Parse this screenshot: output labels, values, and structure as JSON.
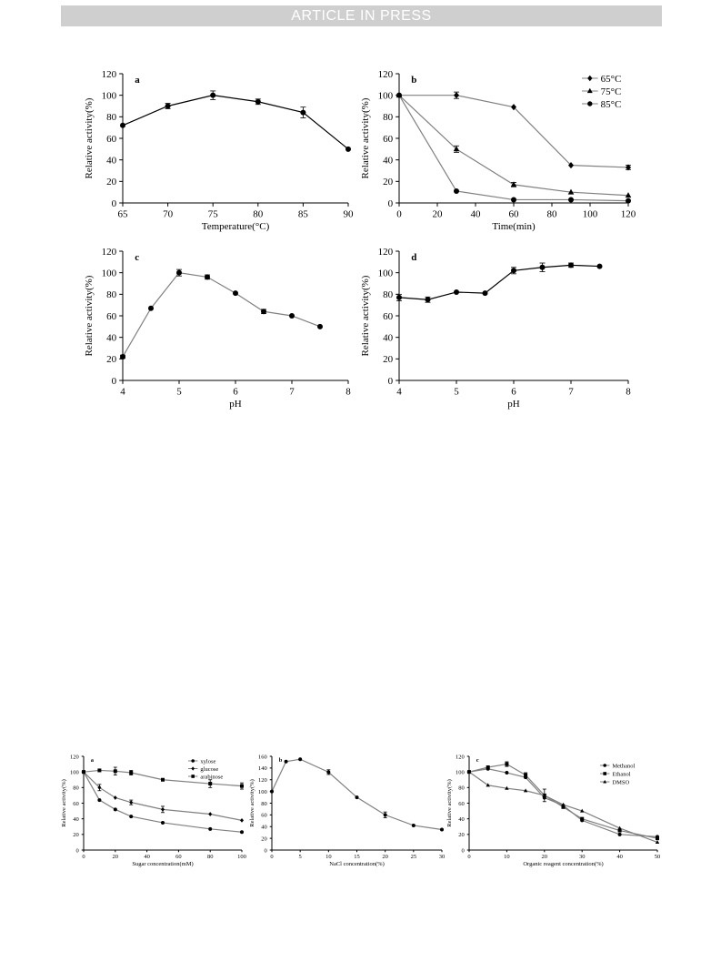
{
  "banner": {
    "text": "ARTICLE IN PRESS"
  },
  "chart_data": [
    {
      "type": "line",
      "panel": "a",
      "xlabel": "Temperature(°C)",
      "ylabel": "Relative activity(%)",
      "xlim": [
        65,
        90
      ],
      "ylim": [
        0,
        120
      ],
      "xticks": [
        65,
        70,
        75,
        80,
        85,
        90
      ],
      "yticks": [
        0,
        20,
        40,
        60,
        80,
        100,
        120
      ],
      "series": [
        {
          "marker": "circle",
          "x": [
            65,
            70,
            75,
            80,
            85,
            90
          ],
          "y": [
            72,
            90,
            100,
            94,
            84,
            50
          ],
          "err": [
            0,
            2.5,
            4,
            2.5,
            5,
            0
          ]
        }
      ]
    },
    {
      "type": "line",
      "panel": "b",
      "xlabel": "Time(min)",
      "ylabel": "Relative activity(%)",
      "xlim": [
        0,
        120
      ],
      "ylim": [
        0,
        120
      ],
      "xticks": [
        0,
        20,
        40,
        60,
        80,
        100,
        120
      ],
      "yticks": [
        0,
        20,
        40,
        60,
        80,
        100,
        120
      ],
      "legend_position": "top-right",
      "series": [
        {
          "name": "65°C",
          "marker": "diamond",
          "x": [
            0,
            30,
            60,
            90,
            120
          ],
          "y": [
            100,
            100,
            89,
            35,
            33
          ],
          "err": [
            0,
            3,
            0,
            0,
            2
          ]
        },
        {
          "name": "75°C",
          "marker": "triangle",
          "x": [
            0,
            30,
            60,
            90,
            120
          ],
          "y": [
            100,
            50,
            17,
            10,
            7
          ],
          "err": [
            0,
            3,
            2,
            0,
            0
          ]
        },
        {
          "name": "85°C",
          "marker": "circle",
          "x": [
            0,
            30,
            60,
            90,
            120
          ],
          "y": [
            100,
            11,
            3,
            3,
            2
          ],
          "err": [
            0,
            0,
            0,
            0,
            0
          ]
        }
      ]
    },
    {
      "type": "line",
      "panel": "c",
      "xlabel": "pH",
      "ylabel": "Relative activity(%)",
      "xlim": [
        4,
        8
      ],
      "ylim": [
        0,
        120
      ],
      "xticks": [
        4,
        5,
        6,
        7,
        8
      ],
      "yticks": [
        0,
        20,
        40,
        60,
        80,
        100,
        120
      ],
      "series": [
        {
          "marker": "circle",
          "x": [
            4,
            4.5,
            5,
            5.5,
            6,
            6.5,
            7,
            7.5
          ],
          "y": [
            22,
            67,
            100,
            96,
            81,
            64,
            60,
            50
          ],
          "err": [
            1.5,
            0,
            3,
            2,
            0,
            2,
            0,
            0
          ]
        }
      ]
    },
    {
      "type": "line",
      "panel": "d",
      "xlabel": "pH",
      "ylabel": "Relative activity(%)",
      "xlim": [
        4,
        8
      ],
      "ylim": [
        0,
        120
      ],
      "xticks": [
        4,
        5,
        6,
        7,
        8
      ],
      "yticks": [
        0,
        20,
        40,
        60,
        80,
        100,
        120
      ],
      "series": [
        {
          "marker": "circle",
          "x": [
            4,
            4.5,
            5,
            5.5,
            6,
            6.5,
            7,
            7.5
          ],
          "y": [
            77,
            75,
            82,
            81,
            102,
            105,
            107,
            106
          ],
          "err": [
            3,
            2.5,
            0,
            0,
            3,
            4,
            2,
            0
          ]
        }
      ]
    },
    {
      "type": "line",
      "panel": "a",
      "xlabel": "Sugar concentration(mM)",
      "ylabel": "Relative activity(%)",
      "xlim": [
        0,
        100
      ],
      "ylim": [
        0,
        120
      ],
      "xticks": [
        0,
        20,
        40,
        60,
        80,
        100
      ],
      "yticks": [
        0,
        20,
        40,
        60,
        80,
        100,
        120
      ],
      "legend_position": "top-right",
      "series": [
        {
          "name": "xylose",
          "marker": "circle",
          "x": [
            0,
            10,
            20,
            30,
            50,
            80,
            100
          ],
          "y": [
            100,
            64,
            52,
            43,
            35,
            27,
            23
          ],
          "err": [
            0,
            0,
            0,
            0,
            0,
            0,
            0
          ]
        },
        {
          "name": "glucose",
          "marker": "diamond",
          "x": [
            0,
            10,
            20,
            30,
            50,
            80,
            100
          ],
          "y": [
            100,
            80,
            67,
            61,
            52,
            46,
            38
          ],
          "err": [
            0,
            4,
            0,
            3,
            4,
            0,
            0
          ]
        },
        {
          "name": "arabinose",
          "marker": "square",
          "x": [
            0,
            10,
            20,
            30,
            50,
            80,
            100
          ],
          "y": [
            100,
            102,
            101,
            99,
            90,
            85,
            82
          ],
          "err": [
            0,
            0,
            5,
            3,
            0,
            5,
            4
          ]
        }
      ]
    },
    {
      "type": "line",
      "panel": "b",
      "xlabel": "NaCl concentration(%)",
      "ylabel": "Relative activity(%)",
      "xlim": [
        0,
        30
      ],
      "ylim": [
        0,
        160
      ],
      "xticks": [
        0,
        5,
        10,
        15,
        20,
        25,
        30
      ],
      "yticks": [
        0,
        20,
        40,
        60,
        80,
        100,
        120,
        140,
        160
      ],
      "series": [
        {
          "marker": "circle",
          "x": [
            0,
            2.5,
            5,
            10,
            15,
            20,
            25,
            30
          ],
          "y": [
            100,
            151,
            155,
            133,
            90,
            60,
            42,
            35
          ],
          "err": [
            0,
            0,
            0,
            4,
            0,
            5,
            0,
            0
          ]
        }
      ]
    },
    {
      "type": "line",
      "panel": "c",
      "xlabel": "Organic reagent concentration(%)",
      "ylabel": "Relative activity(%)",
      "xlim": [
        0,
        50
      ],
      "ylim": [
        0,
        120
      ],
      "xticks": [
        0,
        10,
        20,
        30,
        40,
        50
      ],
      "yticks": [
        0,
        20,
        40,
        60,
        80,
        100,
        120
      ],
      "legend_position": "top-right",
      "series": [
        {
          "name": "Methanol",
          "marker": "circle",
          "x": [
            0,
            5,
            10,
            15,
            20,
            25,
            30,
            40,
            50
          ],
          "y": [
            100,
            104,
            99,
            93,
            67,
            57,
            38,
            20,
            17
          ],
          "err": [
            0,
            0,
            0,
            0,
            0,
            0,
            0,
            0,
            0
          ]
        },
        {
          "name": "Ethanol",
          "marker": "square",
          "x": [
            0,
            5,
            10,
            15,
            20,
            25,
            30,
            40,
            50
          ],
          "y": [
            100,
            106,
            110,
            96,
            70,
            55,
            40,
            25,
            15
          ],
          "err": [
            0,
            0,
            3,
            3,
            8,
            0,
            0,
            0,
            0
          ]
        },
        {
          "name": "DMSO",
          "marker": "triangle",
          "x": [
            0,
            5,
            10,
            15,
            20,
            25,
            30,
            40,
            50
          ],
          "y": [
            100,
            83,
            79,
            76,
            70,
            58,
            50,
            28,
            10
          ],
          "err": [
            0,
            0,
            0,
            0,
            0,
            0,
            0,
            0,
            0
          ]
        }
      ]
    }
  ]
}
